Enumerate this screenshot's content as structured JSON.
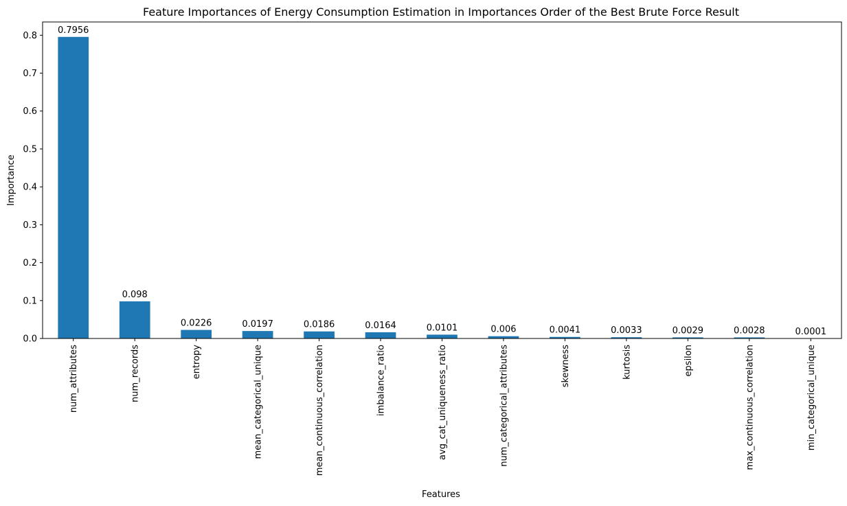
{
  "chart_data": {
    "type": "bar",
    "title": "Feature Importances of Energy Consumption Estimation in Importances Order of the Best Brute Force Result",
    "xlabel": "Features",
    "ylabel": "Importance",
    "categories": [
      "num_attributes",
      "num_records",
      "entropy",
      "mean_categorical_unique",
      "mean_continuous_correlation",
      "imbalance_ratio",
      "avg_cat_uniqueness_ratio",
      "num_categorical_attributes",
      "skewness",
      "kurtosis",
      "epsilon",
      "max_continuous_correlation",
      "min_categorical_unique"
    ],
    "values": [
      0.7956,
      0.098,
      0.0226,
      0.0197,
      0.0186,
      0.0164,
      0.0101,
      0.006,
      0.0041,
      0.0033,
      0.0029,
      0.0028,
      0.0001
    ],
    "data_labels": [
      "0.7956",
      "0.098",
      "0.0226",
      "0.0197",
      "0.0186",
      "0.0164",
      "0.0101",
      "0.006",
      "0.0041",
      "0.0033",
      "0.0029",
      "0.0028",
      "0.0001"
    ],
    "ylim": [
      0,
      0.835
    ],
    "yticks": [
      0.0,
      0.1,
      0.2,
      0.3,
      0.4,
      0.5,
      0.6,
      0.7,
      0.8
    ],
    "ytick_labels": [
      "0.0",
      "0.1",
      "0.2",
      "0.3",
      "0.4",
      "0.5",
      "0.6",
      "0.7",
      "0.8"
    ],
    "bar_color": "#1f77b4",
    "grid": false,
    "legend": false
  }
}
